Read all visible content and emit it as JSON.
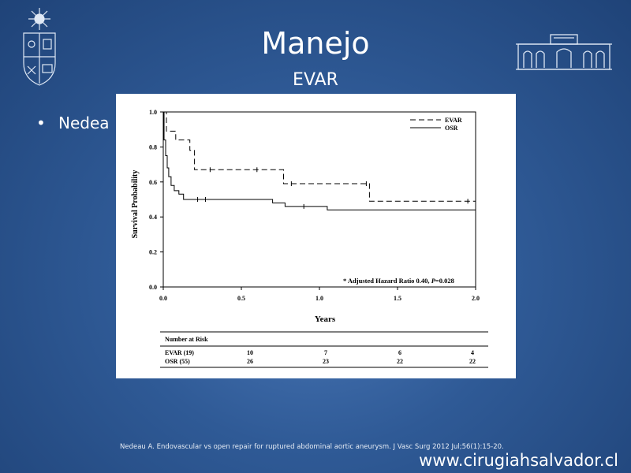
{
  "slide": {
    "title": "Manejo",
    "subtitle": "EVAR",
    "bullet_text": "Nedea",
    "citation": "Nedeau A. Endovascular vs open repair for ruptured abdominal aortic aneurysm. J Vasc Surg 2012 Jul;56(1):15-20.",
    "website": "www.cirugiahsalvador.cl"
  },
  "logos": {
    "left": "university-seal-icon",
    "right": "hospital-building-icon"
  },
  "colors": {
    "background": "#2f5a96",
    "text": "#ffffff",
    "chart_ink": "#000000"
  },
  "chart_data": {
    "type": "line",
    "xlabel": "Years",
    "ylabel": "Survival Probability",
    "xlim": [
      0,
      2.0
    ],
    "ylim": [
      0,
      1.0
    ],
    "xticks": [
      "0.0",
      "0.5",
      "1.0",
      "1.5",
      "2.0"
    ],
    "yticks": [
      "0.0",
      "0.2",
      "0.4",
      "0.6",
      "0.8",
      "1.0"
    ],
    "grid": false,
    "legend_position": "top-right",
    "annotation": "* Adjusted Hazard Ratio 0.40, P=0.028",
    "series": [
      {
        "name": "EVAR",
        "style": "dashed",
        "x": [
          0,
          0.02,
          0.02,
          0.08,
          0.08,
          0.17,
          0.17,
          0.2,
          0.2,
          0.77,
          0.77,
          1.32,
          1.32,
          2.0
        ],
        "y": [
          1.0,
          1.0,
          0.89,
          0.89,
          0.84,
          0.84,
          0.78,
          0.78,
          0.67,
          0.67,
          0.59,
          0.59,
          0.49,
          0.49
        ],
        "censor_x": [
          0.3,
          0.6,
          0.82,
          1.3,
          1.95,
          2.0
        ]
      },
      {
        "name": "OSR",
        "style": "solid",
        "x": [
          0,
          0.005,
          0.005,
          0.015,
          0.015,
          0.025,
          0.025,
          0.035,
          0.035,
          0.05,
          0.05,
          0.07,
          0.07,
          0.1,
          0.1,
          0.13,
          0.13,
          0.7,
          0.7,
          0.78,
          0.78,
          1.05,
          1.05,
          2.0
        ],
        "y": [
          1.0,
          1.0,
          0.84,
          0.84,
          0.75,
          0.75,
          0.68,
          0.68,
          0.63,
          0.63,
          0.58,
          0.58,
          0.55,
          0.55,
          0.53,
          0.53,
          0.5,
          0.5,
          0.48,
          0.48,
          0.46,
          0.46,
          0.44,
          0.44
        ],
        "censor_x": [
          0.22,
          0.27,
          0.9,
          2.0
        ]
      }
    ],
    "risk_table": {
      "title": "Number at Risk",
      "rows": [
        {
          "label": "EVAR (19)",
          "values": [
            "10",
            "7",
            "6",
            "4"
          ]
        },
        {
          "label": "OSR (55)",
          "values": [
            "26",
            "23",
            "22",
            "22"
          ]
        }
      ]
    }
  }
}
